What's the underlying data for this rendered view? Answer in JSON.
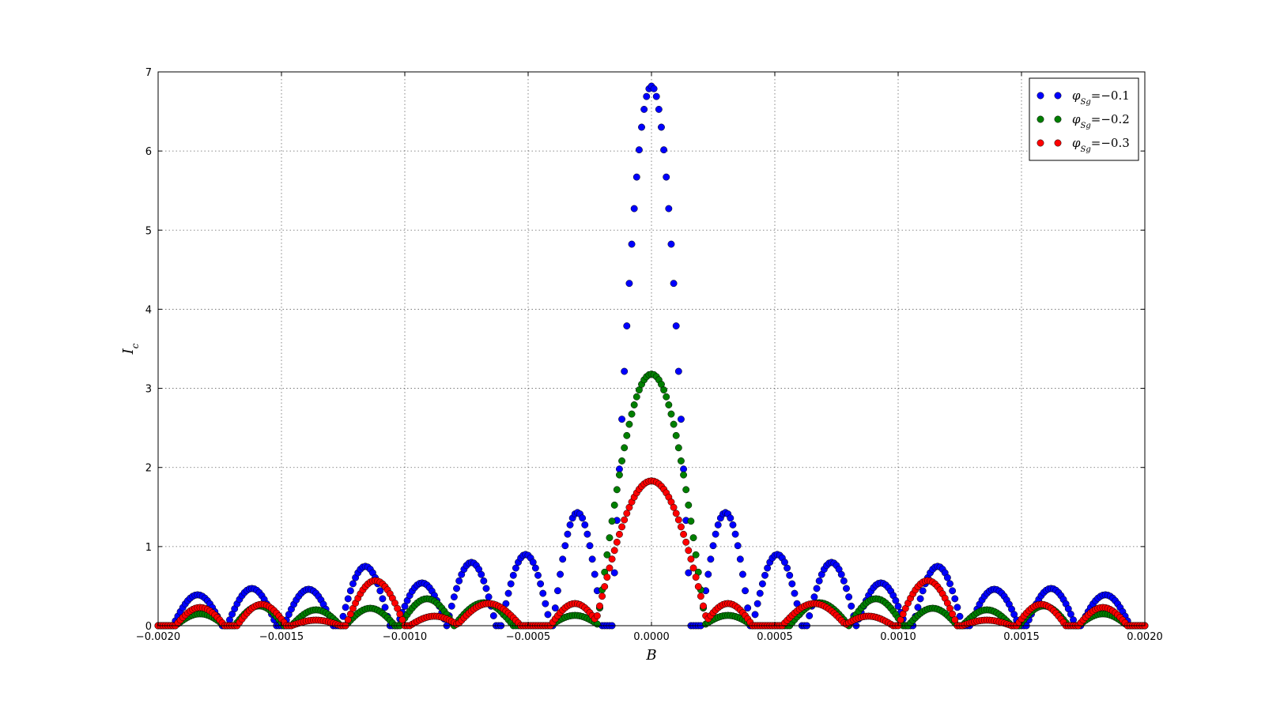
{
  "chart_data": {
    "type": "scatter",
    "title": "",
    "xlabel": "B",
    "ylabel": "I_c",
    "xlim": [
      -0.002,
      0.002
    ],
    "ylim": [
      0,
      7
    ],
    "x_ticks": [
      -0.002,
      -0.0015,
      -0.001,
      -0.0005,
      0.0,
      0.0005,
      0.001,
      0.0015,
      0.002
    ],
    "x_tick_labels": [
      "−0.0020",
      "−0.0015",
      "−0.0010",
      "−0.0005",
      "0.0000",
      "0.0005",
      "0.0010",
      "0.0015",
      "0.0020"
    ],
    "y_ticks": [
      0,
      1,
      2,
      3,
      4,
      5,
      6,
      7
    ],
    "y_tick_labels": [
      "0",
      "1",
      "2",
      "3",
      "4",
      "5",
      "6",
      "7"
    ],
    "grid": true,
    "legend_position": "top-right",
    "series": [
      {
        "name": "φSg=−0.1",
        "legend_main": "φ",
        "legend_sub": "Sg",
        "legend_value": "=−0.1",
        "color": "#0000ff",
        "peaks": [
          {
            "x": 0.0,
            "y": 6.82,
            "halfwidth": 0.00016
          },
          {
            "x": 0.0003,
            "y": 1.43,
            "halfwidth": 0.0001
          },
          {
            "x": 0.00051,
            "y": 0.9,
            "halfwidth": 0.0001
          },
          {
            "x": 0.00073,
            "y": 0.8,
            "halfwidth": 0.0001
          },
          {
            "x": 0.00093,
            "y": 0.54,
            "halfwidth": 0.0001
          },
          {
            "x": 0.00116,
            "y": 0.75,
            "halfwidth": 0.0001
          },
          {
            "x": 0.00139,
            "y": 0.46,
            "halfwidth": 0.0001
          },
          {
            "x": 0.00162,
            "y": 0.47,
            "halfwidth": 0.0001
          },
          {
            "x": 0.00184,
            "y": 0.39,
            "halfwidth": 0.0001
          }
        ]
      },
      {
        "name": "φSg=−0.2",
        "legend_main": "φ",
        "legend_sub": "Sg",
        "legend_value": "=−0.2",
        "color": "#007f00",
        "peaks": [
          {
            "x": 0.0,
            "y": 3.18,
            "halfwidth": 0.00022
          },
          {
            "x": 0.00031,
            "y": 0.13,
            "halfwidth": 0.0001
          },
          {
            "x": 0.00068,
            "y": 0.29,
            "halfwidth": 0.00012
          },
          {
            "x": 0.00091,
            "y": 0.34,
            "halfwidth": 0.00011
          },
          {
            "x": 0.00114,
            "y": 0.22,
            "halfwidth": 0.0001
          },
          {
            "x": 0.00136,
            "y": 0.2,
            "halfwidth": 0.0001
          },
          {
            "x": 0.00159,
            "y": 0.25,
            "halfwidth": 0.0001
          },
          {
            "x": 0.00183,
            "y": 0.15,
            "halfwidth": 0.0001
          }
        ]
      },
      {
        "name": "φSg=−0.3",
        "legend_main": "φ",
        "legend_sub": "Sg",
        "legend_value": "=−0.3",
        "color": "#ff0000",
        "peaks": [
          {
            "x": 0.0,
            "y": 1.83,
            "halfwidth": 0.00023
          },
          {
            "x": 0.00031,
            "y": 0.28,
            "halfwidth": 0.0001
          },
          {
            "x": 0.00066,
            "y": 0.28,
            "halfwidth": 0.00013
          },
          {
            "x": 0.00088,
            "y": 0.12,
            "halfwidth": 0.0001
          },
          {
            "x": 0.00112,
            "y": 0.57,
            "halfwidth": 0.00012
          },
          {
            "x": 0.00136,
            "y": 0.07,
            "halfwidth": 0.0001
          },
          {
            "x": 0.00158,
            "y": 0.27,
            "halfwidth": 0.0001
          },
          {
            "x": 0.00183,
            "y": 0.23,
            "halfwidth": 0.0001
          }
        ]
      }
    ]
  }
}
